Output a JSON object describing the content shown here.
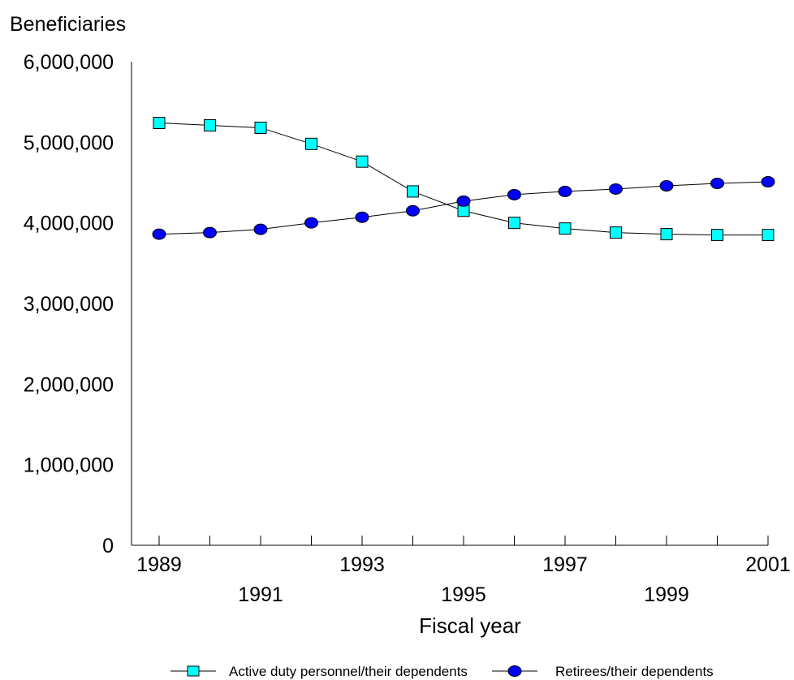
{
  "chart_data": {
    "type": "line",
    "ylabel": "Beneficiaries",
    "xlabel": "Fiscal year",
    "x": [
      1989,
      1990,
      1991,
      1992,
      1993,
      1994,
      1995,
      1996,
      1997,
      1998,
      1999,
      2000,
      2001
    ],
    "x_tick_labels": [
      "1989",
      "1991",
      "1993",
      "1995",
      "1997",
      "1999",
      "2001"
    ],
    "y_tick_labels": [
      "0",
      "1,000,000",
      "2,000,000",
      "3,000,000",
      "4,000,000",
      "5,000,000",
      "6,000,000"
    ],
    "y_ticks": [
      0,
      1000000,
      2000000,
      3000000,
      4000000,
      5000000,
      6000000
    ],
    "ylim": [
      0,
      6000000
    ],
    "grid": false,
    "legend_position": "bottom",
    "series": [
      {
        "name": "Active duty personnel/their dependents",
        "marker": "square",
        "color": "#00FFFF",
        "values": [
          5240000,
          5210000,
          5180000,
          4980000,
          4760000,
          4390000,
          4150000,
          4000000,
          3930000,
          3880000,
          3860000,
          3850000,
          3850000
        ]
      },
      {
        "name": "Retirees/their dependents",
        "marker": "circle",
        "color": "#0000FF",
        "values": [
          3860000,
          3880000,
          3920000,
          4000000,
          4070000,
          4150000,
          4270000,
          4350000,
          4390000,
          4420000,
          4460000,
          4490000,
          4510000
        ]
      }
    ]
  }
}
